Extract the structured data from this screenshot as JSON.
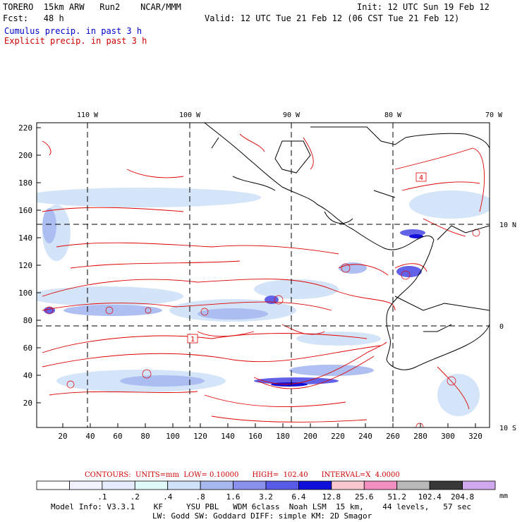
{
  "header": {
    "model_line": "TORERO  15km ARW   Run2    NCAR/MMM",
    "forecast_line": "Fcst:   48 h",
    "init_line": "Init: 12 UTC Sun 19 Feb 12",
    "valid_line": "Valid: 12 UTC Tue 21 Feb 12 (06 CST Tue 21 Feb 12)",
    "legend_cumulus": "Cumulus precip. in past 3 h",
    "legend_explicit": "Explicit precip. in past 3 h"
  },
  "map": {
    "top_lon_labels": [
      "110 W",
      "100 W",
      "90 W",
      "80 W",
      "70 W"
    ],
    "right_lat_labels": [
      "10 N",
      "0",
      "10 S"
    ],
    "y_grid_ticks": [
      "20",
      "40",
      "60",
      "80",
      "100",
      "120",
      "140",
      "160",
      "180",
      "200",
      "220"
    ],
    "x_grid_ticks": [
      "20",
      "40",
      "60",
      "80",
      "100",
      "120",
      "140",
      "160",
      "180",
      "200",
      "220",
      "240",
      "260",
      "280",
      "300",
      "320"
    ],
    "contour_labels": [
      "4",
      "1"
    ]
  },
  "footer": {
    "contours_line": "CONTOURS:  UNITS=mm  LOW= 0.10000      HIGH=  102.40      INTERVAL=X  4.0000",
    "scale_labels": [
      ".1",
      ".2",
      ".4",
      ".8",
      "1.6",
      "3.2",
      "6.4",
      "12.8",
      "25.6",
      "51.2",
      "102.4",
      "204.8"
    ],
    "scale_unit": "mm",
    "scale_colors": [
      "#ffffff",
      "#f2f2ff",
      "#e6ecff",
      "#e0f8f8",
      "#cfe2f8",
      "#a7b8f0",
      "#8a90ee",
      "#5a5ae8",
      "#1010d8",
      "#f8c8d0",
      "#f090c0",
      "#b8b8b8",
      "#383838",
      "#d0a8f0"
    ],
    "model_info_1": "Model Info: V3.3.1    KF     YSU PBL   WDM 6class  Noah LSM  15 km,    44 levels,   57 sec",
    "model_info_2": "LW: Godd SW: Goddard DIFF: simple KM: 2D Smagor"
  },
  "colors": {
    "contour_red": "#e00000",
    "cumulus_blue": "#0000cc",
    "coast_black": "#000000"
  }
}
